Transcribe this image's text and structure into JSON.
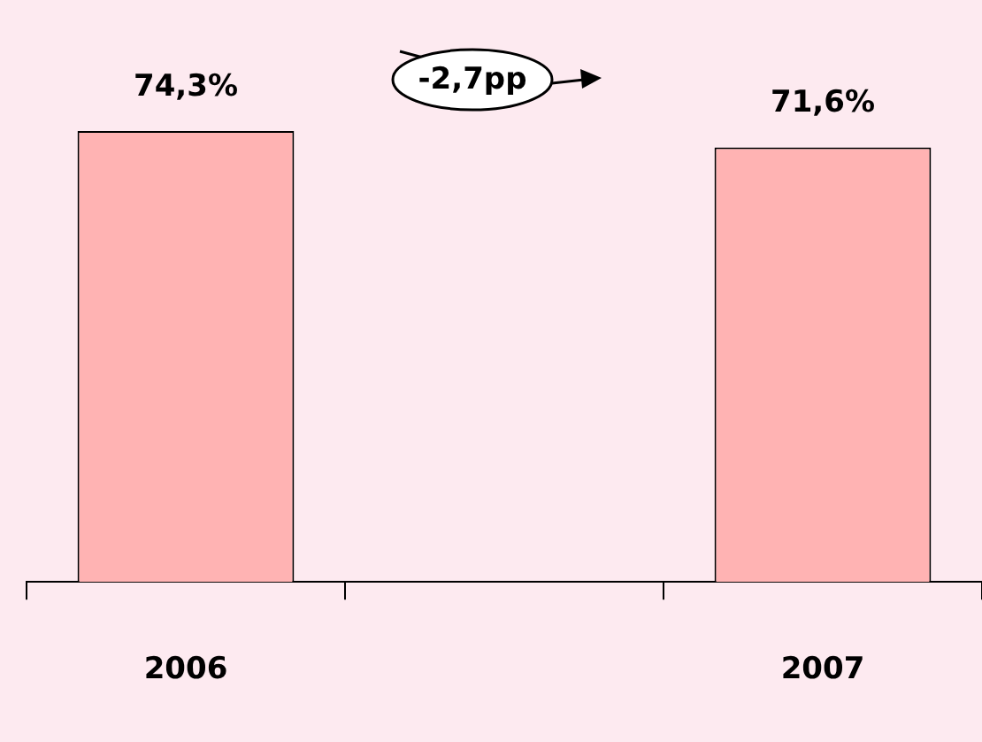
{
  "chart_data": {
    "type": "bar",
    "categories": [
      "2006",
      null,
      "2007"
    ],
    "series": [
      {
        "color": "#ffb3b3",
        "values": [
          74.3,
          null,
          71.6
        ],
        "value_labels": [
          "74,3%",
          null,
          "71,6%"
        ]
      }
    ],
    "tick_labels": "x",
    "annotations": [
      "-2,7pp"
    ],
    "legend": false,
    "grid": false
  }
}
